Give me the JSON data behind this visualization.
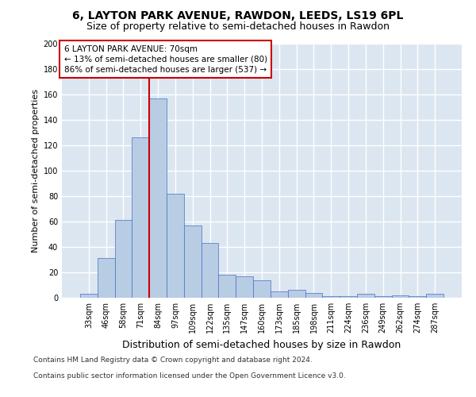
{
  "title1": "6, LAYTON PARK AVENUE, RAWDON, LEEDS, LS19 6PL",
  "title2": "Size of property relative to semi-detached houses in Rawdon",
  "xlabel": "Distribution of semi-detached houses by size in Rawdon",
  "ylabel": "Number of semi-detached properties",
  "categories": [
    "33sqm",
    "46sqm",
    "58sqm",
    "71sqm",
    "84sqm",
    "97sqm",
    "109sqm",
    "122sqm",
    "135sqm",
    "147sqm",
    "160sqm",
    "173sqm",
    "185sqm",
    "198sqm",
    "211sqm",
    "224sqm",
    "236sqm",
    "249sqm",
    "262sqm",
    "274sqm",
    "287sqm"
  ],
  "values": [
    3,
    31,
    61,
    126,
    157,
    82,
    57,
    43,
    18,
    17,
    14,
    5,
    6,
    4,
    1,
    1,
    3,
    1,
    2,
    1,
    3
  ],
  "bar_color": "#b8cce4",
  "bar_edge_color": "#4472c4",
  "vline_x": 3.5,
  "vline_color": "#cc0000",
  "annotation_title": "6 LAYTON PARK AVENUE: 70sqm",
  "annotation_line1": "← 13% of semi-detached houses are smaller (80)",
  "annotation_line2": "86% of semi-detached houses are larger (537) →",
  "annotation_box_color": "#cc0000",
  "footer1": "Contains HM Land Registry data © Crown copyright and database right 2024.",
  "footer2": "Contains public sector information licensed under the Open Government Licence v3.0.",
  "ylim": [
    0,
    200
  ],
  "yticks": [
    0,
    20,
    40,
    60,
    80,
    100,
    120,
    140,
    160,
    180,
    200
  ],
  "background_color": "#dce6f1",
  "grid_color": "#ffffff",
  "title1_fontsize": 10,
  "title2_fontsize": 9,
  "ylabel_fontsize": 8,
  "xlabel_fontsize": 9,
  "tick_fontsize": 7,
  "footer_fontsize": 6.5
}
